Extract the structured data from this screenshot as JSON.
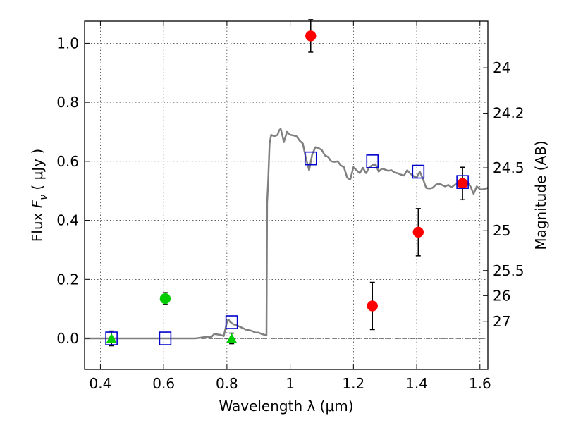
{
  "chart_data": {
    "type": "scatter",
    "xlabel": "Wavelength  λ (μm)",
    "ylabel": "Flux  F_ν  ( μJy )",
    "ylabel_parts": {
      "prefix": "Flux  ",
      "symbol": "F",
      "subscript": "ν",
      "suffix": "  ( μJy )"
    },
    "ylabel_right": "Magnitude (AB)",
    "xlim": [
      0.35,
      1.625
    ],
    "ylim": [
      -0.105,
      1.075
    ],
    "grid": true,
    "x_ticks": [
      0.4,
      0.6,
      0.8,
      1.0,
      1.2,
      1.4,
      1.6
    ],
    "x_tick_labels": [
      "0.4",
      "0.6",
      "0.8",
      "1",
      "1.2",
      "1.4",
      "1.6"
    ],
    "y_ticks": [
      0.0,
      0.2,
      0.4,
      0.6,
      0.8,
      1.0
    ],
    "y_tick_labels": [
      "0.0",
      "0.2",
      "0.4",
      "0.6",
      "0.8",
      "1.0"
    ],
    "right_ticks": [
      {
        "label": "24",
        "flux": 0.917
      },
      {
        "label": "24.2",
        "flux": 0.763
      },
      {
        "label": "24.5",
        "flux": 0.578
      },
      {
        "label": "25",
        "flux": 0.365
      },
      {
        "label": "25.5",
        "flux": 0.23
      },
      {
        "label": "26",
        "flux": 0.145
      },
      {
        "label": "27",
        "flux": 0.058
      }
    ],
    "zero_line": 0.0,
    "series": [
      {
        "kind": "line",
        "color": "#808080",
        "x": [
          0.35,
          0.5,
          0.7,
          0.72,
          0.74,
          0.75,
          0.76,
          0.78,
          0.79,
          0.8,
          0.805,
          0.81,
          0.82,
          0.83,
          0.84,
          0.85,
          0.86,
          0.87,
          0.88,
          0.89,
          0.9,
          0.91,
          0.92,
          0.925,
          0.927,
          0.93,
          0.935,
          0.94,
          0.95,
          0.96,
          0.965,
          0.97,
          0.975,
          0.98,
          0.99,
          1.0,
          1.01,
          1.02,
          1.03,
          1.04,
          1.05,
          1.06,
          1.07,
          1.08,
          1.09,
          1.1,
          1.11,
          1.12,
          1.13,
          1.14,
          1.15,
          1.16,
          1.17,
          1.18,
          1.19,
          1.2,
          1.21,
          1.22,
          1.23,
          1.24,
          1.25,
          1.26,
          1.27,
          1.28,
          1.29,
          1.3,
          1.31,
          1.32,
          1.33,
          1.34,
          1.35,
          1.36,
          1.37,
          1.38,
          1.39,
          1.4,
          1.41,
          1.42,
          1.43,
          1.44,
          1.45,
          1.46,
          1.47,
          1.48,
          1.49,
          1.5,
          1.51,
          1.52,
          1.53,
          1.54,
          1.55,
          1.56,
          1.57,
          1.58,
          1.59,
          1.6,
          1.61,
          1.625
        ],
        "y": [
          0.0,
          0.0,
          0.0,
          0.003,
          0.006,
          0.004,
          0.015,
          0.012,
          0.008,
          0.055,
          0.064,
          0.056,
          0.048,
          0.045,
          0.04,
          0.035,
          0.03,
          0.028,
          0.025,
          0.02,
          0.02,
          0.015,
          0.012,
          0.01,
          0.46,
          0.52,
          0.66,
          0.69,
          0.685,
          0.69,
          0.705,
          0.71,
          0.69,
          0.665,
          0.7,
          0.69,
          0.688,
          0.685,
          0.67,
          0.66,
          0.61,
          0.57,
          0.625,
          0.648,
          0.645,
          0.638,
          0.62,
          0.615,
          0.6,
          0.598,
          0.6,
          0.586,
          0.58,
          0.545,
          0.538,
          0.58,
          0.57,
          0.56,
          0.578,
          0.56,
          0.58,
          0.587,
          0.59,
          0.565,
          0.575,
          0.572,
          0.568,
          0.57,
          0.562,
          0.56,
          0.555,
          0.552,
          0.57,
          0.558,
          0.55,
          0.545,
          0.565,
          0.54,
          0.51,
          0.508,
          0.51,
          0.52,
          0.525,
          0.52,
          0.515,
          0.52,
          0.512,
          0.52,
          0.525,
          0.518,
          0.525,
          0.53,
          0.515,
          0.49,
          0.515,
          0.505,
          0.505,
          0.51
        ]
      },
      {
        "kind": "red-points",
        "color": "#ff0000",
        "x": [
          1.065,
          1.26,
          1.405,
          1.545
        ],
        "y": [
          1.025,
          0.11,
          0.36,
          0.525
        ],
        "err": [
          0.055,
          0.08,
          0.08,
          0.055
        ]
      },
      {
        "kind": "green-points",
        "color": "#00cc00",
        "x": [
          0.605
        ],
        "y": [
          0.135
        ],
        "err": [
          0.02
        ]
      },
      {
        "kind": "green-triangles",
        "color": "#00cc00",
        "x": [
          0.435,
          0.815
        ],
        "y": [
          0.0,
          0.0
        ],
        "err": [
          0.025,
          0.018
        ]
      },
      {
        "kind": "blue-squares",
        "color": "#0000cc",
        "x": [
          0.435,
          0.605,
          0.815,
          1.065,
          1.26,
          1.405,
          1.545
        ],
        "y": [
          0.0,
          0.0,
          0.055,
          0.61,
          0.6,
          0.565,
          0.53
        ]
      }
    ]
  }
}
